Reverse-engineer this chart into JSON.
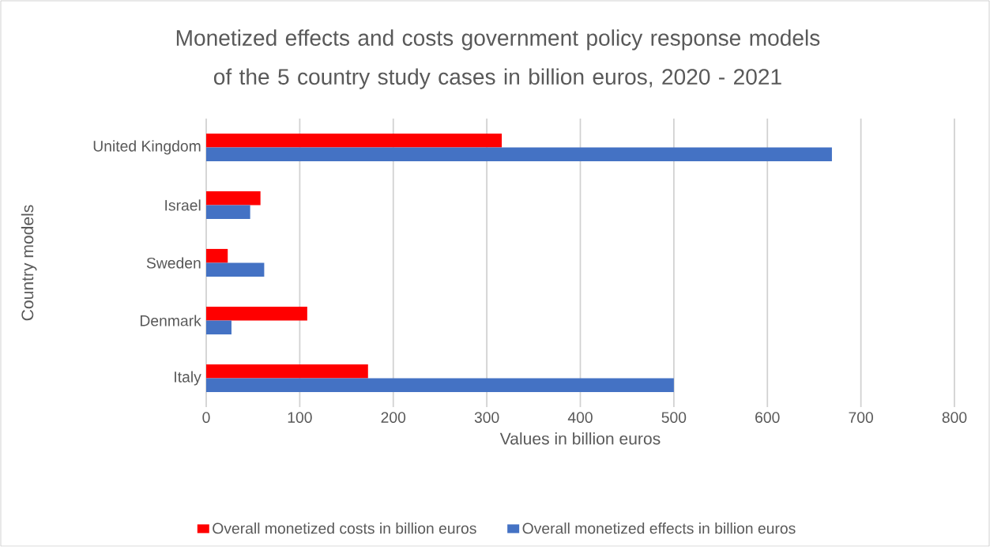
{
  "chart_data": {
    "type": "bar",
    "orientation": "horizontal",
    "title": "Monetized effects and costs government policy response models of the 5 country study cases in billion euros, 2020 - 2021",
    "xlabel": "Values in billion euros",
    "ylabel": "Country models",
    "categories": [
      "United Kingdom",
      "Israel",
      "Sweden",
      "Denmark",
      "Italy"
    ],
    "series": [
      {
        "name": "Overall monetized costs in billion euros",
        "color": "#ff0000",
        "values": [
          316,
          58,
          23,
          108,
          173
        ]
      },
      {
        "name": "Overall monetized effects in billion euros",
        "color": "#4472c4",
        "values": [
          669,
          47,
          62,
          27,
          500
        ]
      }
    ],
    "xlim": [
      0,
      800
    ],
    "xticks": [
      0,
      100,
      200,
      300,
      400,
      500,
      600,
      700,
      800
    ],
    "grid": "x",
    "legend": "bottom"
  }
}
